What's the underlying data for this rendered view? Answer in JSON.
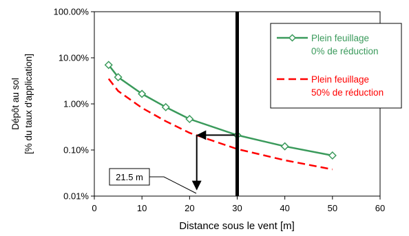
{
  "chart_data": {
    "type": "line",
    "xlabel": "Distance sous le vent [m]",
    "ylabel": [
      "Dépôt au sol",
      "[% du taux d'application]"
    ],
    "x_ticks": [
      0,
      10,
      20,
      30,
      40,
      50,
      60
    ],
    "x_tick_labels": [
      "0",
      "10",
      "20",
      "30",
      "40",
      "50",
      "60"
    ],
    "y_scale": "log",
    "y_ticks": [
      0.01,
      0.1,
      1,
      10,
      100
    ],
    "y_tick_labels": [
      "0.01%",
      "0.10%",
      "1.00%",
      "10.00%",
      "100.00%"
    ],
    "xlim": [
      0,
      60
    ],
    "ylim": [
      0.01,
      100
    ],
    "grid": false,
    "legend_position": "top-right",
    "series": [
      {
        "name": [
          "Plein feuillage",
          "0% de réduction"
        ],
        "color": "#3a9a5b",
        "style": "solid",
        "marker": "diamond",
        "x": [
          3,
          5,
          10,
          15,
          20,
          30,
          40,
          50
        ],
        "y": [
          7.0,
          3.8,
          1.65,
          0.85,
          0.47,
          0.21,
          0.12,
          0.076
        ]
      },
      {
        "name": [
          "Plein feuillage",
          "50% de réduction"
        ],
        "color": "#ff0000",
        "style": "dashed",
        "marker": "none",
        "x": [
          3,
          5,
          10,
          15,
          20,
          30,
          40,
          50
        ],
        "y": [
          3.5,
          1.9,
          0.82,
          0.42,
          0.235,
          0.105,
          0.06,
          0.038
        ]
      }
    ],
    "reference_line": {
      "x": 30,
      "color": "#000000"
    },
    "annotation": {
      "label": "21.5 m",
      "x": 21.5,
      "from_y": 0.21,
      "to_y": 0.014
    }
  }
}
